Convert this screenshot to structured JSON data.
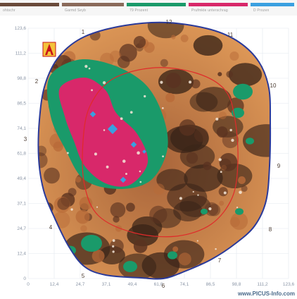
{
  "legend": [
    {
      "label": "ohtschr",
      "color": "#6a4a3a",
      "width": 88
    },
    {
      "label": "Garmd Seyb",
      "color": "#8a6a5a",
      "width": 92
    },
    {
      "label": "79 Prozent",
      "color": "#1a9a6a",
      "width": 88
    },
    {
      "label": "Prufmkte unterschrag",
      "color": "#d8286a",
      "width": 88
    },
    {
      "label": "D Prozen",
      "color": "#3aa0e0",
      "width": 66
    }
  ],
  "axes": {
    "x_ticks": [
      "0",
      "12,4",
      "24,7",
      "37,1",
      "49,4",
      "61,8",
      "74,1",
      "86,5",
      "98,8",
      "111,2",
      "123,6"
    ],
    "y_ticks": [
      "123,6",
      "111,2",
      "98,8",
      "86,5",
      "74,1",
      "61,8",
      "49,4",
      "37,1",
      "24,7",
      "12,4",
      "0"
    ]
  },
  "clock_labels": [
    "12",
    "11",
    "10",
    "9",
    "8",
    "7",
    "6",
    "5",
    "4",
    "3",
    "2",
    "1"
  ],
  "colors": {
    "outline": "#2a3a9a",
    "ring": "#e02a2a",
    "wood": "#d98a4a",
    "decay_dark": "#3a2418",
    "green": "#1a9a6a",
    "magenta": "#d8286a",
    "blue": "#3aa0e0"
  },
  "icon": {
    "name": "warning-a-icon"
  },
  "watermark": "www.PICUS-Info.com"
}
